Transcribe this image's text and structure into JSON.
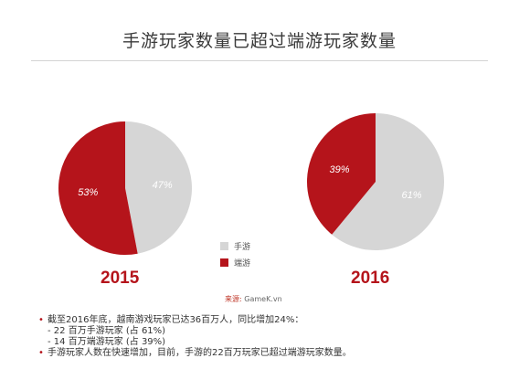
{
  "title": "手游玩家数量已超过端游玩家数量",
  "colors": {
    "mobile": "#d6d6d6",
    "pc": "#b5141b",
    "accent": "#b5141b"
  },
  "chart_data": [
    {
      "type": "pie",
      "title": "2015",
      "slices": [
        {
          "name": "手游",
          "value": 47,
          "label": "47%"
        },
        {
          "name": "端游",
          "value": 53,
          "label": "53%"
        }
      ]
    },
    {
      "type": "pie",
      "title": "2016",
      "slices": [
        {
          "name": "手游",
          "value": 61,
          "label": "61%"
        },
        {
          "name": "端游",
          "value": 39,
          "label": "39%"
        }
      ]
    }
  ],
  "legend": [
    {
      "label": "手游"
    },
    {
      "label": "端游"
    }
  ],
  "source": {
    "label": "来源:",
    "value": "GameK.vn"
  },
  "notes": [
    {
      "bullet": true,
      "text": "截至2016年底，越南游戏玩家已达36百万人，同比增加24%："
    },
    {
      "bullet": false,
      "text": "- 22 百万手游玩家 (占 61%)"
    },
    {
      "bullet": false,
      "text": "- 14 百万端游玩家 (占 39%)"
    },
    {
      "bullet": true,
      "text": "手游玩家人数在快速增加，目前，手游的22百万玩家已超过端游玩家数量。"
    }
  ]
}
